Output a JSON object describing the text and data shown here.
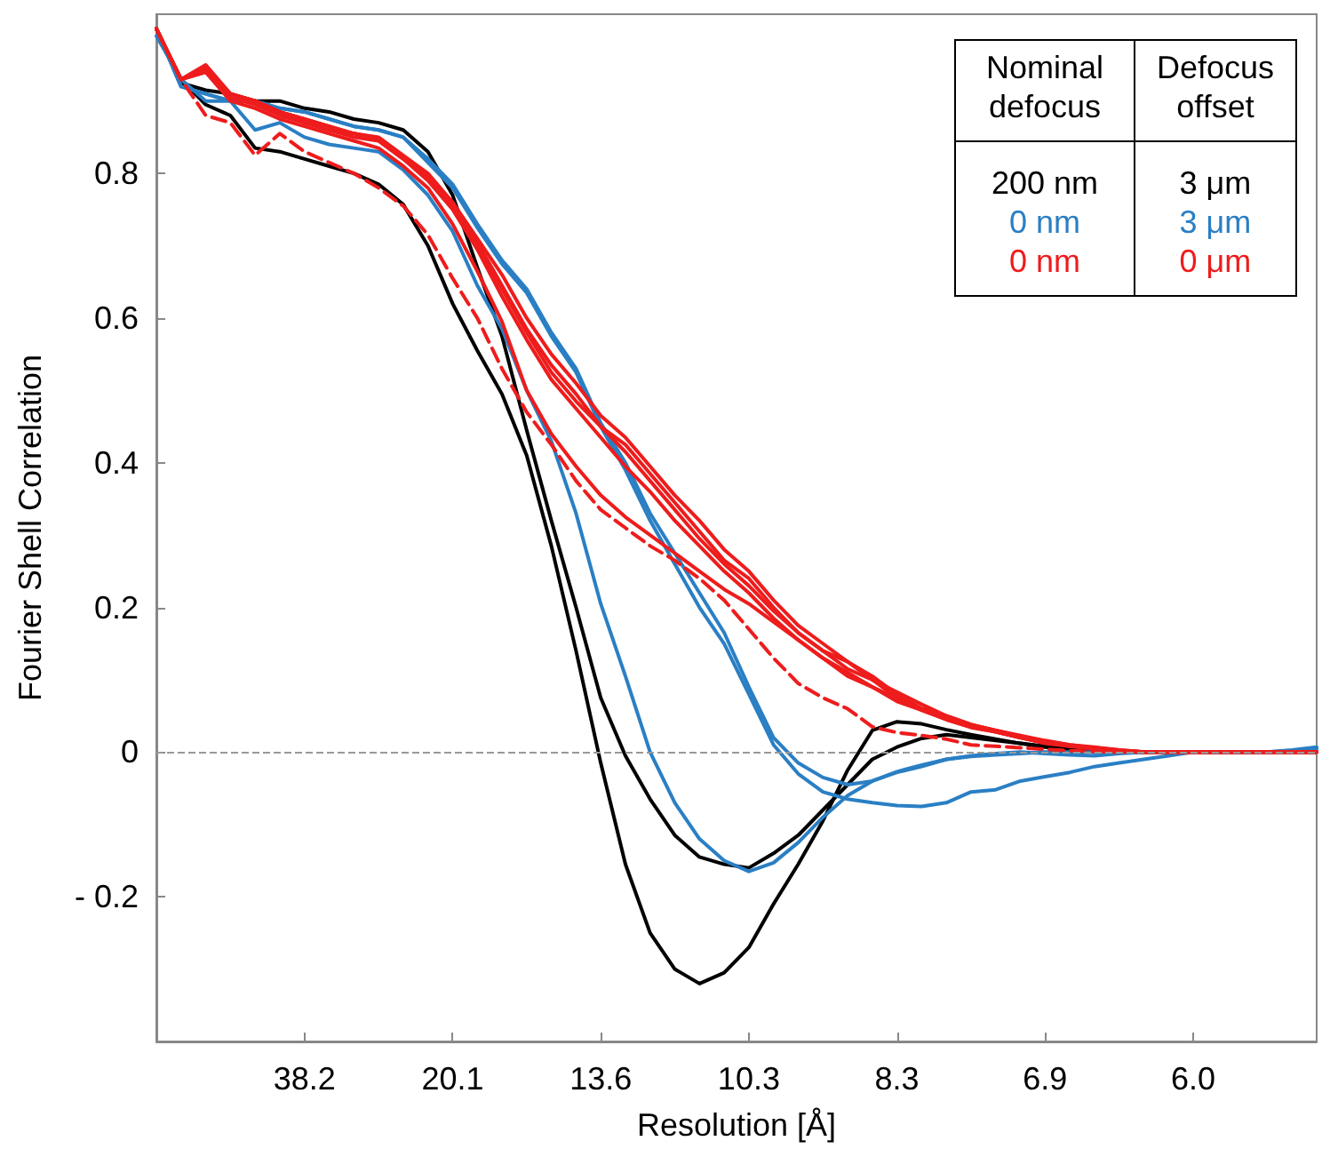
{
  "chart_data": {
    "type": "line",
    "xlabel": "Resolution [Å]",
    "ylabel": "Fourier Shell Correlation",
    "categories": [
      null,
      null,
      null,
      null,
      null,
      null,
      "38.2",
      null,
      null,
      null,
      null,
      null,
      "20.1",
      null,
      null,
      null,
      null,
      null,
      "13.6",
      null,
      null,
      null,
      null,
      null,
      "10.3",
      null,
      null,
      null,
      null,
      null,
      "8.3",
      null,
      null,
      null,
      null,
      null,
      "6.9",
      null,
      null,
      null,
      null,
      null,
      "6.0",
      null,
      null,
      null,
      null,
      null
    ],
    "ylim": [
      -0.4,
      1.02
    ],
    "yticks": [
      {
        "value": -0.2,
        "label": "- 0.2"
      },
      0,
      0.2,
      0.4,
      0.6,
      0.8
    ],
    "grid": false,
    "legend": false,
    "marker": "none",
    "ref_lines": [
      {
        "axis": "y",
        "value": 0,
        "color": "#999999",
        "line_style": "dashed"
      }
    ],
    "annotations": [
      "Nominal defocus",
      "Defocus offset",
      "200 nm",
      "3 μm",
      "0 nm",
      "3 μm",
      "0 nm",
      "0 μm"
    ],
    "series": [
      {
        "color": "#000000",
        "values": [
          1.0,
          0.93,
          0.895,
          0.88,
          0.835,
          0.83,
          0.82,
          0.81,
          0.8,
          0.785,
          0.757,
          0.7,
          0.62,
          0.555,
          0.495,
          0.41,
          0.285,
          0.14,
          -0.015,
          -0.155,
          -0.25,
          -0.3,
          -0.32,
          -0.305,
          -0.27,
          -0.21,
          -0.155,
          -0.095,
          -0.025,
          0.03,
          0.042,
          0.039,
          0.031,
          0.024,
          0.018,
          0.012,
          0.007,
          0.003,
          0,
          0,
          0,
          0,
          0,
          0,
          0,
          0,
          0,
          0
        ]
      },
      {
        "color": "#000000",
        "values": [
          1.0,
          0.925,
          0.915,
          0.91,
          0.9,
          0.9,
          0.89,
          0.885,
          0.875,
          0.87,
          0.86,
          0.83,
          0.77,
          0.67,
          0.575,
          0.445,
          0.32,
          0.2,
          0.075,
          -0.005,
          -0.065,
          -0.115,
          -0.145,
          -0.155,
          -0.16,
          -0.14,
          -0.115,
          -0.08,
          -0.045,
          -0.01,
          0.007,
          0.019,
          0.024,
          0.02,
          0.016,
          0.012,
          0.008,
          0.004,
          0,
          0,
          0,
          0,
          0,
          0,
          0,
          0,
          0,
          0
        ]
      },
      {
        "color": "#2a7fc4",
        "values": [
          0.99,
          0.93,
          0.9,
          0.9,
          0.86,
          0.87,
          0.85,
          0.84,
          0.835,
          0.83,
          0.805,
          0.77,
          0.72,
          0.645,
          0.585,
          0.5,
          0.43,
          0.33,
          0.205,
          0.105,
          0,
          -0.07,
          -0.12,
          -0.15,
          -0.165,
          -0.153,
          -0.125,
          -0.09,
          -0.06,
          -0.04,
          -0.028,
          -0.02,
          -0.01,
          -0.005,
          -0.002,
          0,
          -0.002,
          -0.004,
          -0.005,
          -0.002,
          0,
          0,
          0,
          0,
          0,
          0,
          0.002,
          0.005
        ]
      },
      {
        "color": "#2a7fc4",
        "values": [
          1.0,
          0.92,
          0.91,
          0.9,
          0.9,
          0.89,
          0.885,
          0.875,
          0.865,
          0.86,
          0.85,
          0.82,
          0.785,
          0.73,
          0.68,
          0.64,
          0.58,
          0.53,
          0.455,
          0.4,
          0.33,
          0.275,
          0.22,
          0.165,
          0.09,
          0.02,
          -0.015,
          -0.035,
          -0.045,
          -0.04,
          -0.027,
          -0.018,
          -0.01,
          -0.006,
          -0.004,
          -0.002,
          0,
          0,
          0,
          0,
          0,
          0,
          0,
          0,
          0,
          0,
          0.003,
          0.007
        ]
      },
      {
        "color": "#2a7fc4",
        "values": [
          1.0,
          0.92,
          0.91,
          0.9,
          0.9,
          0.89,
          0.885,
          0.875,
          0.865,
          0.86,
          0.85,
          0.815,
          0.78,
          0.725,
          0.675,
          0.635,
          0.575,
          0.525,
          0.45,
          0.39,
          0.32,
          0.26,
          0.2,
          0.15,
          0.08,
          0.01,
          -0.03,
          -0.055,
          -0.065,
          -0.07,
          -0.074,
          -0.075,
          -0.07,
          -0.055,
          -0.052,
          -0.04,
          -0.034,
          -0.028,
          -0.02,
          -0.015,
          -0.01,
          -0.005,
          0,
          0,
          0,
          0,
          0,
          0
        ]
      },
      {
        "color": "#ee1c1c",
        "values": [
          1.0,
          0.93,
          0.945,
          0.91,
          0.9,
          0.885,
          0.875,
          0.865,
          0.855,
          0.85,
          0.825,
          0.8,
          0.76,
          0.705,
          0.645,
          0.585,
          0.535,
          0.495,
          0.45,
          0.415,
          0.375,
          0.335,
          0.295,
          0.26,
          0.23,
          0.195,
          0.165,
          0.14,
          0.115,
          0.1,
          0.075,
          0.06,
          0.05,
          0.038,
          0.03,
          0.022,
          0.015,
          0.01,
          0.007,
          0.003,
          0,
          0,
          0,
          0,
          0,
          0,
          0,
          0
        ]
      },
      {
        "color": "#ee1c1c",
        "values": [
          1.0,
          0.93,
          0.94,
          0.905,
          0.895,
          0.88,
          0.87,
          0.86,
          0.85,
          0.845,
          0.82,
          0.795,
          0.76,
          0.71,
          0.66,
          0.6,
          0.55,
          0.51,
          0.465,
          0.435,
          0.395,
          0.355,
          0.32,
          0.28,
          0.25,
          0.21,
          0.175,
          0.15,
          0.125,
          0.105,
          0.08,
          0.06,
          0.05,
          0.038,
          0.028,
          0.02,
          0.012,
          0.008,
          0.005,
          0.002,
          0,
          0,
          0,
          0,
          0,
          0,
          0,
          0
        ]
      },
      {
        "color": "#ee1c1c",
        "values": [
          1.0,
          0.93,
          0.945,
          0.91,
          0.9,
          0.885,
          0.87,
          0.86,
          0.855,
          0.845,
          0.82,
          0.79,
          0.75,
          0.695,
          0.63,
          0.57,
          0.515,
          0.475,
          0.435,
          0.395,
          0.36,
          0.32,
          0.285,
          0.25,
          0.22,
          0.185,
          0.155,
          0.13,
          0.11,
          0.09,
          0.07,
          0.058,
          0.045,
          0.035,
          0.028,
          0.02,
          0.013,
          0.008,
          0.005,
          0.002,
          0,
          0,
          0,
          0,
          0,
          0,
          0,
          0
        ]
      },
      {
        "color": "#ee1c1c",
        "values": [
          1.0,
          0.93,
          0.95,
          0.91,
          0.9,
          0.885,
          0.875,
          0.865,
          0.855,
          0.848,
          0.822,
          0.797,
          0.755,
          0.7,
          0.64,
          0.58,
          0.525,
          0.485,
          0.45,
          0.425,
          0.385,
          0.345,
          0.305,
          0.265,
          0.24,
          0.2,
          0.165,
          0.14,
          0.125,
          0.1,
          0.083,
          0.066,
          0.05,
          0.038,
          0.03,
          0.023,
          0.016,
          0.01,
          0.006,
          0.003,
          0,
          0,
          0,
          0,
          0,
          0,
          0,
          0
        ]
      },
      {
        "color": "#ee1c1c",
        "values": [
          1.0,
          0.93,
          0.94,
          0.9,
          0.89,
          0.875,
          0.865,
          0.855,
          0.845,
          0.835,
          0.81,
          0.78,
          0.73,
          0.665,
          0.595,
          0.5,
          0.44,
          0.395,
          0.355,
          0.325,
          0.3,
          0.275,
          0.25,
          0.225,
          0.205,
          0.18,
          0.155,
          0.13,
          0.105,
          0.09,
          0.074,
          0.058,
          0.045,
          0.034,
          0.028,
          0.02,
          0.013,
          0.009,
          0.005,
          0.002,
          0,
          0,
          0,
          0,
          0,
          0,
          0,
          0
        ]
      },
      {
        "color": "#ee1c1c",
        "line_style": "dashed",
        "values": [
          1.0,
          0.93,
          0.88,
          0.87,
          0.825,
          0.855,
          0.83,
          0.815,
          0.8,
          0.78,
          0.755,
          0.715,
          0.655,
          0.6,
          0.53,
          0.47,
          0.425,
          0.375,
          0.335,
          0.31,
          0.285,
          0.265,
          0.24,
          0.21,
          0.17,
          0.13,
          0.095,
          0.075,
          0.06,
          0.035,
          0.027,
          0.023,
          0.018,
          0.01,
          0.008,
          0.006,
          0.004,
          0.002,
          0.001,
          0,
          0,
          0,
          0,
          0,
          0,
          0,
          0,
          0
        ]
      }
    ]
  }
}
